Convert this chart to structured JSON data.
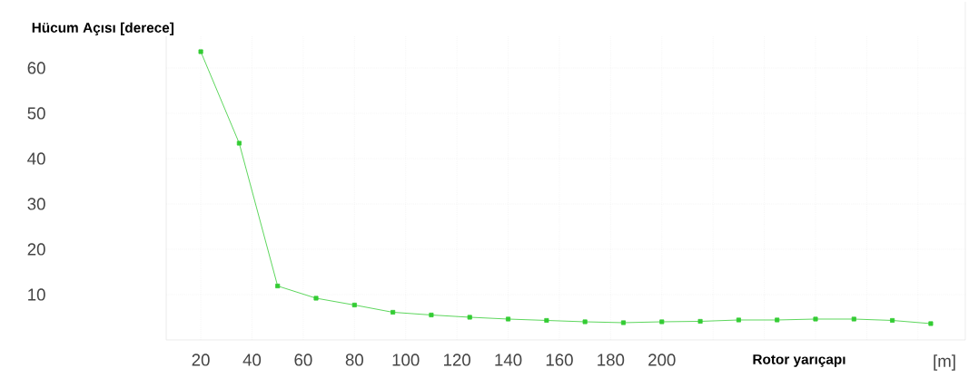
{
  "chart_data": {
    "type": "line",
    "ylabel": "Hücum Açısı [derece]",
    "xlabel": "Rotor yarıçapı",
    "annotations": [
      "[m]"
    ],
    "x": [
      20,
      35,
      50,
      65,
      80,
      95,
      110,
      125,
      140,
      155,
      170,
      185,
      200,
      215,
      230,
      245,
      260,
      275,
      290,
      305
    ],
    "series": [
      {
        "color": "#33cc33",
        "values": [
          63.6,
          43.4,
          11.9,
          9.2,
          7.7,
          6.1,
          5.5,
          5.0,
          4.6,
          4.3,
          4.0,
          3.8,
          4.0,
          4.1,
          4.4,
          4.4,
          4.6,
          4.6,
          4.3,
          3.6
        ]
      }
    ],
    "xlim": [
      6.5,
      318.5
    ],
    "ylim": [
      0,
      67
    ],
    "xticks": [
      20,
      40,
      60,
      80,
      100,
      120,
      140,
      160,
      180,
      200,
      {
        "value": 220,
        "label": null
      },
      {
        "value": 240,
        "label": null
      },
      {
        "value": 260,
        "label": null
      },
      {
        "value": 280,
        "label": null
      },
      {
        "value": 300,
        "label": null
      }
    ],
    "yticks": [
      {
        "value": 10,
        "label": "10"
      },
      {
        "value": 20,
        "label": "20"
      },
      {
        "value": 30,
        "label": "30"
      },
      {
        "value": 40,
        "label": "40"
      },
      {
        "value": 50,
        "label": "50"
      },
      {
        "value": 60,
        "label": "60"
      }
    ],
    "grid": true,
    "marker": "square",
    "line_style": "solid"
  }
}
